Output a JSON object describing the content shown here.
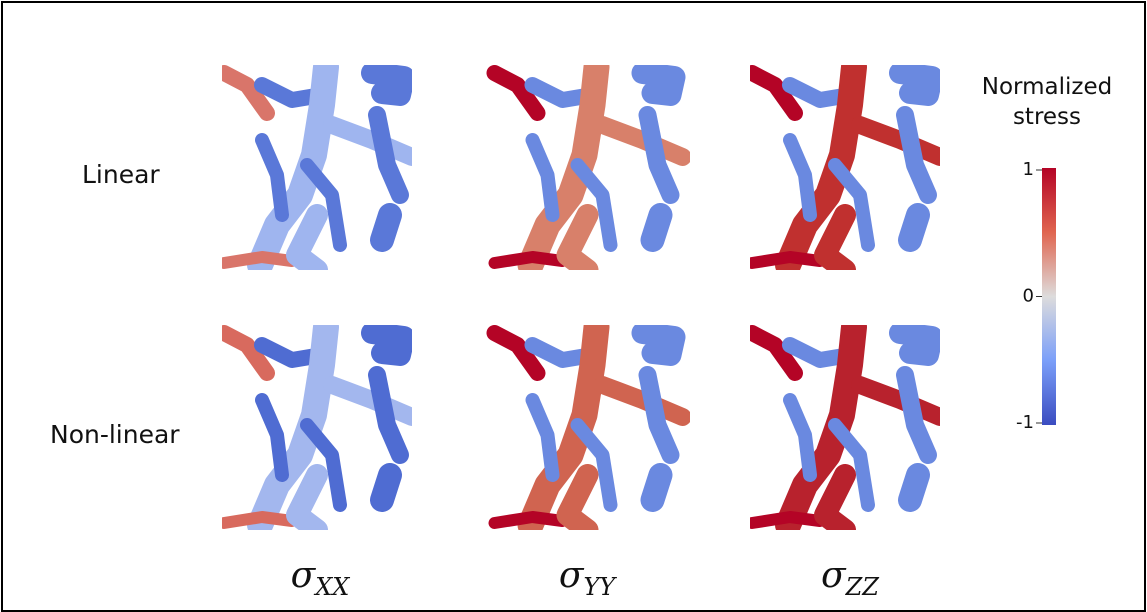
{
  "rows": [
    "Linear",
    "Non-linear"
  ],
  "columns": [
    {
      "symbol": "σ",
      "subscript": "XX"
    },
    {
      "symbol": "σ",
      "subscript": "YY"
    },
    {
      "symbol": "σ",
      "subscript": "ZZ"
    }
  ],
  "colorbar": {
    "title": "Normalized stress",
    "range": [
      -1,
      1
    ],
    "ticks": [
      1,
      0,
      -1
    ]
  }
}
